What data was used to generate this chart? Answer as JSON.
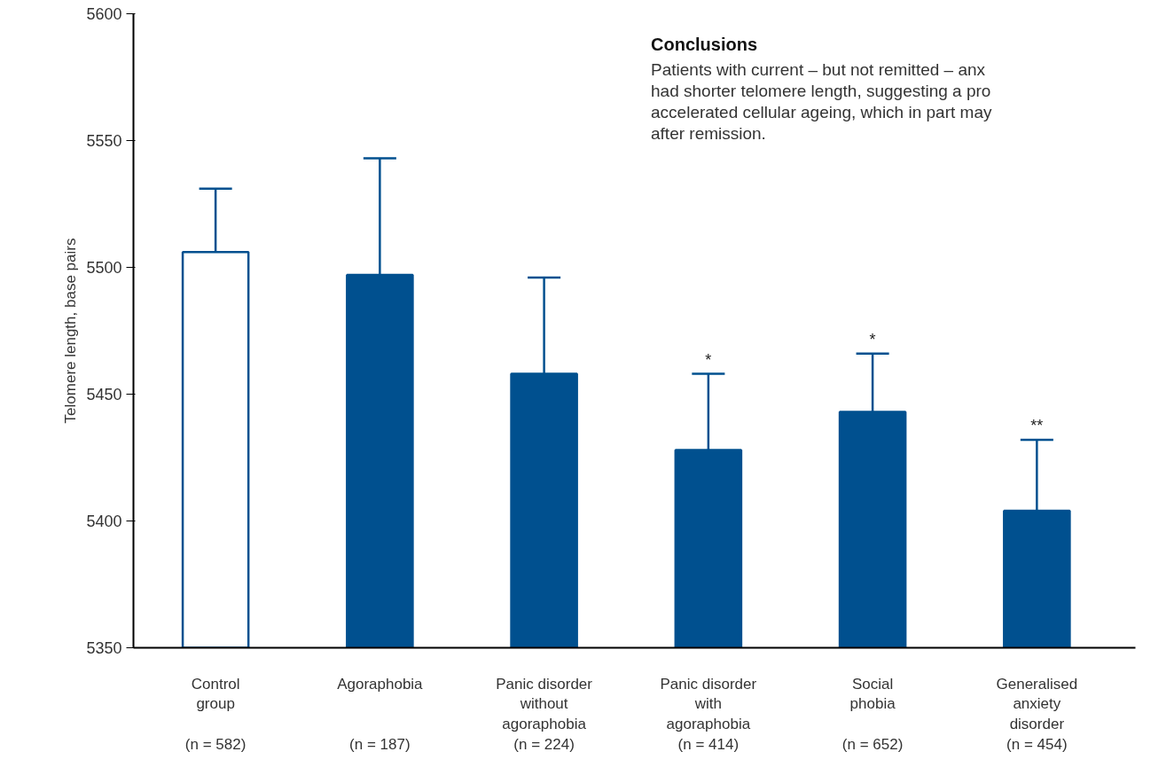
{
  "chart_data": {
    "type": "bar",
    "ylabel": "Telomere length, base pairs",
    "categories": [
      "Control\ngroup\n\n(n = 582)",
      "Agoraphobia\n\n\n(n = 187)",
      "Panic disorder\nwithout\nagoraphobia\n(n = 224)",
      "Panic disorder\nwith\nagoraphobia\n(n = 414)",
      "Social\nphobia\n\n(n = 652)",
      "Generalised\nanxiety\ndisorder\n(n = 454)"
    ],
    "series": [
      {
        "color": "#00508f",
        "colors": [
          "#ffffff",
          "#00508f",
          "#00508f",
          "#00508f",
          "#00508f",
          "#00508f"
        ],
        "values": [
          5506,
          5497,
          5458,
          5428,
          5443,
          5404
        ],
        "errors": [
          [
            5506,
            5531
          ],
          [
            5497,
            5543
          ],
          [
            5458,
            5496
          ],
          [
            5428,
            5458
          ],
          [
            5443,
            5466
          ],
          [
            5404,
            5432
          ]
        ]
      }
    ],
    "ylim": [
      5350,
      5600
    ],
    "yticks": [
      5350,
      5400,
      5450,
      5500,
      5550,
      5600
    ],
    "grid": false,
    "annotations": [
      {
        "text": "*",
        "x": "Panic disorder\nwith\nagoraphobia\n(n = 414)",
        "y": 5458
      },
      {
        "text": "*",
        "x": "Social\nphobia\n\n(n = 652)",
        "y": 5466
      },
      {
        "text": "**",
        "x": "Generalised\nanxiety\ndisorder\n(n = 454)",
        "y": 5432
      },
      "Conclusions",
      "Patients with current – but not remitted – anx",
      "had shorter telomere length, suggesting a pro",
      "accelerated cellular ageing, which in part may",
      "after remission."
    ]
  }
}
